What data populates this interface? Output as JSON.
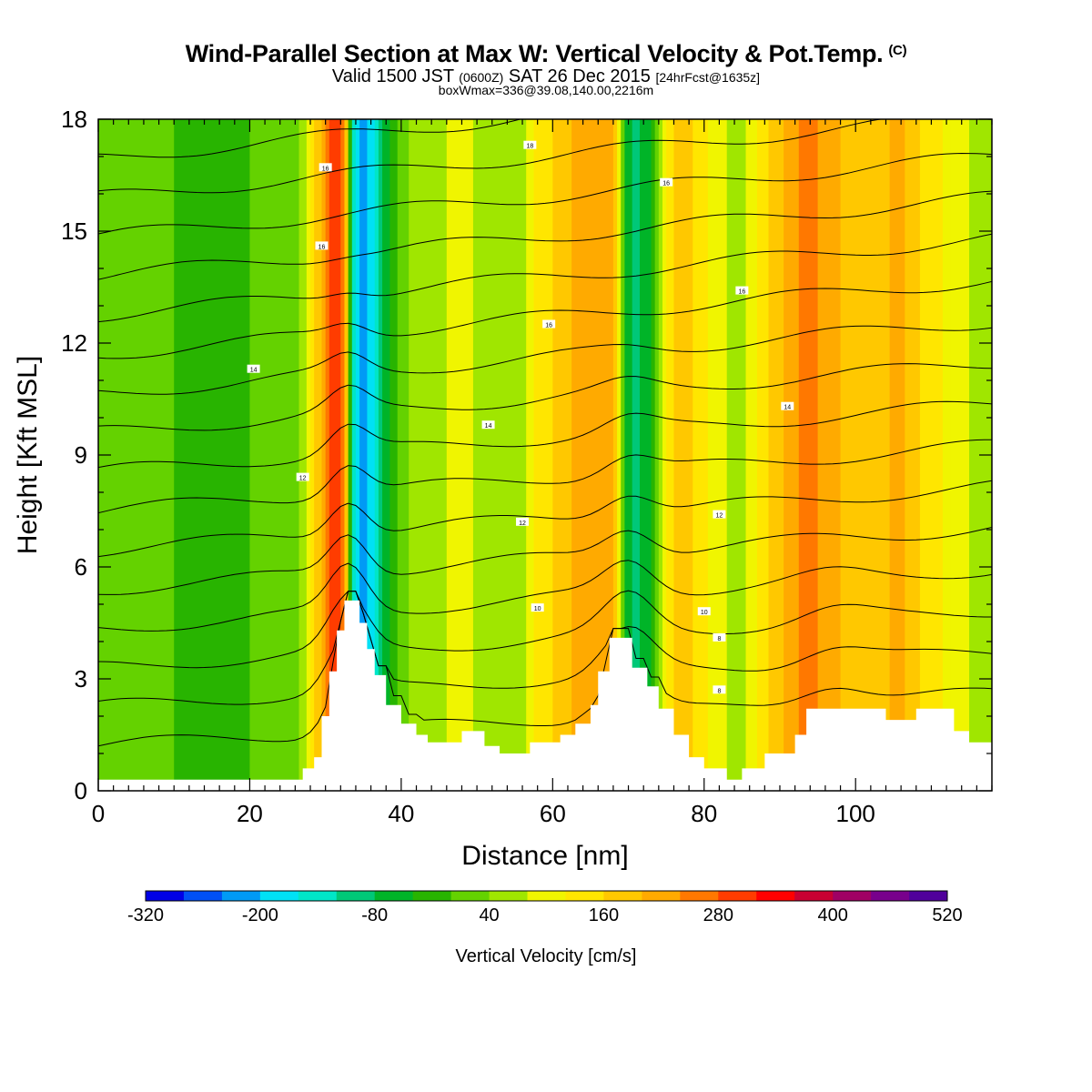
{
  "header": {
    "title": "Wind-Parallel Section at Max W: Vertical Velocity & Pot.Temp.",
    "title_suffix": "(C)",
    "subtitle_a": "Valid 1500 JST",
    "subtitle_b": "(0600Z)",
    "subtitle_c": "SAT 26 Dec 2015",
    "subtitle_d": "[24hrFcst@1635z]",
    "subtitle2": "boxWmax=336@39.08,140.00,2216m"
  },
  "chart_data": {
    "type": "heatmap",
    "xlabel": "Distance [nm]",
    "ylabel": "Height [Kft MSL]",
    "xlim": [
      0,
      118
    ],
    "ylim": [
      0,
      18
    ],
    "xticks": [
      0,
      20,
      40,
      60,
      80,
      100
    ],
    "yticks": [
      0,
      3,
      6,
      9,
      12,
      15,
      18
    ],
    "colorbar": {
      "title": "Vertical Velocity [cm/s]",
      "levels": [
        -320,
        -280,
        -240,
        -200,
        -160,
        -120,
        -80,
        -40,
        0,
        40,
        80,
        120,
        160,
        200,
        240,
        280,
        320,
        360,
        400,
        440,
        480,
        520
      ],
      "tick_labels": [
        -320,
        -200,
        -80,
        40,
        160,
        280,
        400,
        520
      ],
      "colors": [
        "#0000e6",
        "#0050f5",
        "#009af5",
        "#00e1f5",
        "#00e6c8",
        "#00c878",
        "#00b428",
        "#28b400",
        "#64d200",
        "#a0e600",
        "#f0f500",
        "#ffe600",
        "#ffc800",
        "#ffaa00",
        "#ff7800",
        "#ff3c00",
        "#ff0000",
        "#c80032",
        "#a00064",
        "#78008c",
        "#50009b"
      ]
    },
    "velocity_bands": [
      {
        "x": 0,
        "w": 0
      },
      {
        "x": 5,
        "w": 0
      },
      {
        "x": 10,
        "w": 0
      },
      {
        "x": 15,
        "w": -10
      },
      {
        "x": 20,
        "w": 0
      },
      {
        "x": 25,
        "w": 5
      },
      {
        "x": 27,
        "w": 60
      },
      {
        "x": 29,
        "w": 180
      },
      {
        "x": 31,
        "w": 330
      },
      {
        "x": 32.5,
        "w": 250
      },
      {
        "x": 33.5,
        "w": -100
      },
      {
        "x": 35,
        "w": -230
      },
      {
        "x": 36.5,
        "w": -150
      },
      {
        "x": 38,
        "w": -60
      },
      {
        "x": 40,
        "w": 30
      },
      {
        "x": 43,
        "w": 60
      },
      {
        "x": 46,
        "w": 80
      },
      {
        "x": 48,
        "w": 120
      },
      {
        "x": 50,
        "w": 60
      },
      {
        "x": 53,
        "w": 80
      },
      {
        "x": 56,
        "w": 50
      },
      {
        "x": 58,
        "w": 130
      },
      {
        "x": 61,
        "w": 180
      },
      {
        "x": 64,
        "w": 220
      },
      {
        "x": 66,
        "w": 240
      },
      {
        "x": 68,
        "w": 200
      },
      {
        "x": 69.5,
        "w": -40
      },
      {
        "x": 71,
        "w": -90
      },
      {
        "x": 73,
        "w": -40
      },
      {
        "x": 75,
        "w": 120
      },
      {
        "x": 77,
        "w": 190
      },
      {
        "x": 79,
        "w": 150
      },
      {
        "x": 81,
        "w": 110
      },
      {
        "x": 84,
        "w": 60
      },
      {
        "x": 86,
        "w": 90
      },
      {
        "x": 89,
        "w": 170
      },
      {
        "x": 92,
        "w": 230
      },
      {
        "x": 94,
        "w": 260
      },
      {
        "x": 97,
        "w": 210
      },
      {
        "x": 100,
        "w": 170
      },
      {
        "x": 103,
        "w": 190
      },
      {
        "x": 106,
        "w": 210
      },
      {
        "x": 109,
        "w": 150
      },
      {
        "x": 112,
        "w": 110
      },
      {
        "x": 115,
        "w": 80
      },
      {
        "x": 118,
        "w": 40
      }
    ],
    "terrain": [
      [
        0,
        0.3
      ],
      [
        27,
        0.3
      ],
      [
        27,
        0.6
      ],
      [
        28.5,
        0.6
      ],
      [
        28.5,
        0.9
      ],
      [
        29.5,
        0.9
      ],
      [
        29.5,
        2.0
      ],
      [
        30.5,
        2.0
      ],
      [
        30.5,
        3.2
      ],
      [
        31.5,
        3.2
      ],
      [
        31.5,
        4.3
      ],
      [
        32.5,
        4.3
      ],
      [
        32.5,
        5.1
      ],
      [
        34.5,
        5.1
      ],
      [
        34.5,
        4.5
      ],
      [
        35.5,
        4.5
      ],
      [
        35.5,
        3.8
      ],
      [
        36.5,
        3.8
      ],
      [
        36.5,
        3.1
      ],
      [
        38,
        3.1
      ],
      [
        38,
        2.3
      ],
      [
        40,
        2.3
      ],
      [
        40,
        1.8
      ],
      [
        42,
        1.8
      ],
      [
        42,
        1.5
      ],
      [
        43.5,
        1.5
      ],
      [
        43.5,
        1.3
      ],
      [
        48,
        1.3
      ],
      [
        48,
        1.6
      ],
      [
        51,
        1.6
      ],
      [
        51,
        1.2
      ],
      [
        53,
        1.2
      ],
      [
        53,
        1.0
      ],
      [
        57,
        1.0
      ],
      [
        57,
        1.3
      ],
      [
        61,
        1.3
      ],
      [
        61,
        1.5
      ],
      [
        63,
        1.5
      ],
      [
        63,
        1.8
      ],
      [
        65,
        1.8
      ],
      [
        65,
        2.3
      ],
      [
        66,
        2.3
      ],
      [
        66,
        3.2
      ],
      [
        67.5,
        3.2
      ],
      [
        67.5,
        4.1
      ],
      [
        70.5,
        4.1
      ],
      [
        70.5,
        3.3
      ],
      [
        72.5,
        3.3
      ],
      [
        72.5,
        2.8
      ],
      [
        74,
        2.8
      ],
      [
        74,
        2.2
      ],
      [
        76,
        2.2
      ],
      [
        76,
        1.5
      ],
      [
        78,
        1.5
      ],
      [
        78,
        0.9
      ],
      [
        80,
        0.9
      ],
      [
        80,
        0.6
      ],
      [
        83,
        0.6
      ],
      [
        83,
        0.3
      ],
      [
        85,
        0.3
      ],
      [
        85,
        0.6
      ],
      [
        88,
        0.6
      ],
      [
        88,
        1.0
      ],
      [
        92,
        1.0
      ],
      [
        92,
        1.5
      ],
      [
        93.5,
        1.5
      ],
      [
        93.5,
        2.2
      ],
      [
        104,
        2.2
      ],
      [
        104,
        1.9
      ],
      [
        108,
        1.9
      ],
      [
        108,
        2.2
      ],
      [
        113,
        2.2
      ],
      [
        113,
        1.6
      ],
      [
        115,
        1.6
      ],
      [
        115,
        1.3
      ],
      [
        118,
        1.3
      ]
    ],
    "isentrope_labels": [
      {
        "text": "18",
        "x": 57,
        "y": 17.3
      },
      {
        "text": "16",
        "x": 30,
        "y": 16.7
      },
      {
        "text": "16",
        "x": 75,
        "y": 16.3
      },
      {
        "text": "16",
        "x": 29.5,
        "y": 14.6
      },
      {
        "text": "16",
        "x": 85,
        "y": 13.4
      },
      {
        "text": "16",
        "x": 59.5,
        "y": 12.5
      },
      {
        "text": "14",
        "x": 20.5,
        "y": 11.3
      },
      {
        "text": "14",
        "x": 91,
        "y": 10.3
      },
      {
        "text": "14",
        "x": 51.5,
        "y": 9.8
      },
      {
        "text": "12",
        "x": 27,
        "y": 8.4
      },
      {
        "text": "12",
        "x": 56,
        "y": 7.2
      },
      {
        "text": "12",
        "x": 82,
        "y": 7.4
      },
      {
        "text": "10",
        "x": 58,
        "y": 4.9
      },
      {
        "text": "10",
        "x": 80,
        "y": 4.8
      },
      {
        "text": "8",
        "x": 82,
        "y": 4.1
      },
      {
        "text": "8",
        "x": 82,
        "y": 2.7
      }
    ]
  }
}
